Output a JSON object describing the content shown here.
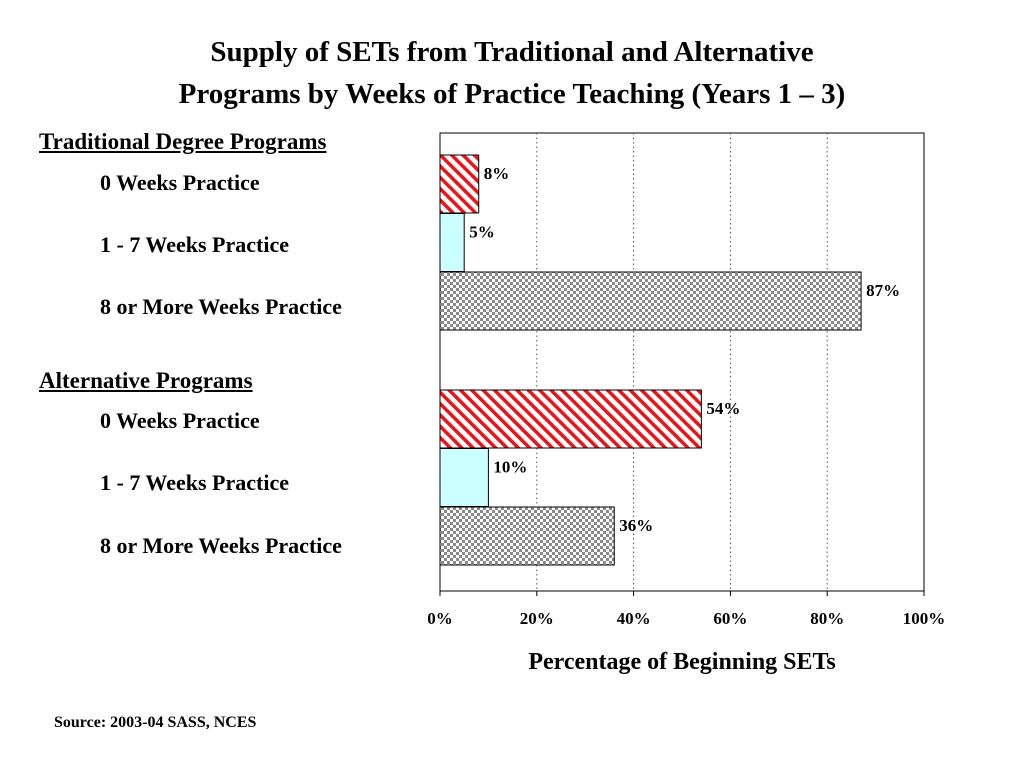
{
  "title_line1": "Supply of SETs from Traditional and Alternative",
  "title_line2": "Programs by Weeks of Practice Teaching (Years 1 – 3)",
  "source": "Source: 2003-04 SASS, NCES",
  "chart_data": {
    "type": "bar",
    "orientation": "horizontal",
    "title": "Supply of SETs from Traditional and Alternative Programs by Weeks of Practice Teaching (Years 1 – 3)",
    "xlabel": "Percentage of Beginning SETs",
    "xlim": [
      0,
      100
    ],
    "x_ticks": [
      "0%",
      "20%",
      "40%",
      "60%",
      "80%",
      "100%"
    ],
    "grid": "vertical dotted",
    "colors": {
      "red_hatch": "#e8151b",
      "cyan": "#ccffff",
      "checker": "#8a8a8a",
      "border": "#000000"
    },
    "groups": [
      {
        "name": "Traditional Degree Programs",
        "bars": [
          {
            "label": "0 Weeks Practice",
            "value": 8,
            "value_label": "8%",
            "style": "red_hatch"
          },
          {
            "label": "1 - 7 Weeks Practice",
            "value": 5,
            "value_label": "5%",
            "style": "cyan"
          },
          {
            "label": "8 or More Weeks Practice",
            "value": 87,
            "value_label": "87%",
            "style": "checker"
          }
        ]
      },
      {
        "name": "Alternative  Programs",
        "bars": [
          {
            "label": "0 Weeks Practice",
            "value": 54,
            "value_label": "54%",
            "style": "red_hatch"
          },
          {
            "label": "1 - 7 Weeks Practice",
            "value": 10,
            "value_label": "10%",
            "style": "cyan"
          },
          {
            "label": "8 or More Weeks Practice",
            "value": 36,
            "value_label": "36%",
            "style": "checker"
          }
        ]
      }
    ]
  }
}
